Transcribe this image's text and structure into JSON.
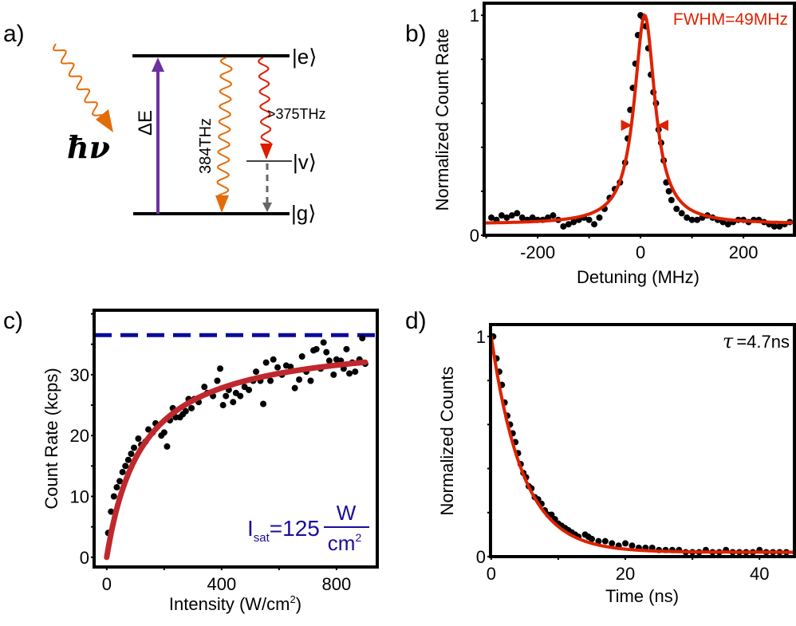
{
  "panel_labels": {
    "a": "a)",
    "b": "b)",
    "c": "c)",
    "d": "d)"
  },
  "diagram": {
    "photon_label": "ħν",
    "excited_state": "|e⟩",
    "vibrational_state": "|v⟩",
    "ground_state": "|g⟩",
    "energy_gap": "ΔE",
    "zpl_emission": "384THz",
    "psb_emission": ">375THz",
    "colors": {
      "excitation": "#7030a0",
      "photon": "#e36c09",
      "psb": "#dd1c00",
      "relaxation": "#666666"
    }
  },
  "chart_data": [
    {
      "id": "b",
      "type": "scatter",
      "xlabel": "Detuning (MHz)",
      "ylabel": "Normalized Count Rate",
      "xlim": [
        -304,
        299
      ],
      "ylim": [
        0,
        1.055
      ],
      "xticks": [
        -200,
        0,
        200
      ],
      "xtick_labels": [
        "-200",
        "0",
        "200"
      ],
      "yticks": [
        0,
        1
      ],
      "ytick_labels": [
        "0",
        "1"
      ],
      "annotation": "FWHM=49MHz",
      "fit": {
        "model": "lorentzian",
        "center": 8,
        "fwhm": 49,
        "offset": 0.05,
        "amplitude": 0.95
      },
      "fwhm_markers_y": 0.5,
      "colors": {
        "points": "#000000",
        "fit": "#dd2200"
      },
      "points": [
        [
          -290,
          0.08
        ],
        [
          -280,
          0.07
        ],
        [
          -270,
          0.09
        ],
        [
          -260,
          0.08
        ],
        [
          -250,
          0.09
        ],
        [
          -240,
          0.1
        ],
        [
          -230,
          0.08
        ],
        [
          -220,
          0.07
        ],
        [
          -210,
          0.08
        ],
        [
          -200,
          0.07
        ],
        [
          -190,
          0.07
        ],
        [
          -180,
          0.08
        ],
        [
          -170,
          0.09
        ],
        [
          -160,
          0.07
        ],
        [
          -150,
          0.04
        ],
        [
          -140,
          0.05
        ],
        [
          -130,
          0.06
        ],
        [
          -120,
          0.07
        ],
        [
          -110,
          0.08
        ],
        [
          -100,
          0.07
        ],
        [
          -90,
          0.05
        ],
        [
          -80,
          0.08
        ],
        [
          -70,
          0.12
        ],
        [
          -60,
          0.17
        ],
        [
          -50,
          0.21
        ],
        [
          -40,
          0.24
        ],
        [
          -30,
          0.33
        ],
        [
          -25,
          0.44
        ],
        [
          -20,
          0.57
        ],
        [
          -15,
          0.67
        ],
        [
          -10,
          0.78
        ],
        [
          -5,
          0.91
        ],
        [
          0,
          1.0
        ],
        [
          5,
          0.99
        ],
        [
          10,
          0.95
        ],
        [
          15,
          0.85
        ],
        [
          20,
          0.73
        ],
        [
          25,
          0.65
        ],
        [
          30,
          0.6
        ],
        [
          35,
          0.48
        ],
        [
          40,
          0.42
        ],
        [
          45,
          0.34
        ],
        [
          50,
          0.24
        ],
        [
          55,
          0.2
        ],
        [
          60,
          0.16
        ],
        [
          70,
          0.12
        ],
        [
          80,
          0.1
        ],
        [
          90,
          0.08
        ],
        [
          100,
          0.07
        ],
        [
          110,
          0.07
        ],
        [
          120,
          0.08
        ],
        [
          130,
          0.09
        ],
        [
          140,
          0.08
        ],
        [
          150,
          0.07
        ],
        [
          160,
          0.06
        ],
        [
          170,
          0.05
        ],
        [
          180,
          0.06
        ],
        [
          190,
          0.07
        ],
        [
          200,
          0.07
        ],
        [
          210,
          0.06
        ],
        [
          220,
          0.07
        ],
        [
          230,
          0.07
        ],
        [
          240,
          0.06
        ],
        [
          250,
          0.05
        ],
        [
          260,
          0.04
        ],
        [
          270,
          0.04
        ],
        [
          280,
          0.05
        ],
        [
          290,
          0.06
        ]
      ]
    },
    {
      "id": "c",
      "type": "scatter",
      "xlabel": "Intensity (W/cm",
      "xlabel_sup": "2",
      "xlabel_end": ")",
      "ylabel": "Count Rate (kcps)",
      "xlim": [
        -44,
        942
      ],
      "ylim": [
        -1.6,
        40.6
      ],
      "xticks": [
        0,
        400,
        800
      ],
      "xtick_labels": [
        "0",
        "400",
        "800"
      ],
      "yticks": [
        0,
        10,
        20,
        30
      ],
      "ytick_labels": [
        "0",
        "10",
        "20",
        "30"
      ],
      "saturation_level": 36.5,
      "annotation": {
        "symbol": "I",
        "subscript": "sat",
        "value": "=125",
        "numerator": "W",
        "denominator": "cm",
        "denominator_sup": "2"
      },
      "fit": {
        "model": "saturation",
        "Rmax": 36.5,
        "Isat": 125,
        "range": [
          0,
          900
        ]
      },
      "colors": {
        "points": "#000000",
        "fit": "#c0282d",
        "saturation": "#0a0a9c",
        "annotation": "#1a0d9c"
      },
      "points": [
        [
          5,
          4
        ],
        [
          15,
          7.5
        ],
        [
          25,
          10
        ],
        [
          35,
          11.5
        ],
        [
          45,
          12.5
        ],
        [
          55,
          14
        ],
        [
          65,
          15
        ],
        [
          75,
          16
        ],
        [
          85,
          17
        ],
        [
          95,
          18
        ],
        [
          110,
          19.5
        ],
        [
          120,
          18.5
        ],
        [
          135,
          19
        ],
        [
          145,
          21
        ],
        [
          160,
          20.5
        ],
        [
          170,
          22
        ],
        [
          190,
          20
        ],
        [
          200,
          20.5
        ],
        [
          210,
          18.2
        ],
        [
          220,
          22.5
        ],
        [
          230,
          24.5
        ],
        [
          240,
          23
        ],
        [
          255,
          23
        ],
        [
          265,
          23.5
        ],
        [
          275,
          24
        ],
        [
          285,
          26
        ],
        [
          295,
          24.5
        ],
        [
          305,
          26
        ],
        [
          320,
          25.5
        ],
        [
          340,
          28
        ],
        [
          350,
          27
        ],
        [
          370,
          26.5
        ],
        [
          385,
          29
        ],
        [
          395,
          31
        ],
        [
          405,
          25
        ],
        [
          415,
          26.5
        ],
        [
          425,
          27.5
        ],
        [
          440,
          25.5
        ],
        [
          450,
          27
        ],
        [
          465,
          26.5
        ],
        [
          480,
          28
        ],
        [
          495,
          27.5
        ],
        [
          510,
          29
        ],
        [
          520,
          30.5
        ],
        [
          535,
          29
        ],
        [
          545,
          25.2
        ],
        [
          555,
          32
        ],
        [
          570,
          29
        ],
        [
          580,
          32.5
        ],
        [
          595,
          31.2
        ],
        [
          610,
          30
        ],
        [
          625,
          31.5
        ],
        [
          640,
          31.3
        ],
        [
          655,
          27.8
        ],
        [
          670,
          29.2
        ],
        [
          680,
          33
        ],
        [
          695,
          30.5
        ],
        [
          710,
          29
        ],
        [
          720,
          34
        ],
        [
          730,
          34.2
        ],
        [
          745,
          31
        ],
        [
          755,
          35.3
        ],
        [
          765,
          33.7
        ],
        [
          775,
          32.3
        ],
        [
          790,
          30
        ],
        [
          800,
          32.5
        ],
        [
          815,
          32.3
        ],
        [
          825,
          31
        ],
        [
          835,
          34.2
        ],
        [
          845,
          30.2
        ],
        [
          855,
          32
        ],
        [
          865,
          30.5
        ],
        [
          880,
          32.5
        ],
        [
          890,
          36
        ],
        [
          900,
          31.8
        ]
      ]
    },
    {
      "id": "d",
      "type": "scatter",
      "xlabel": "Time (ns)",
      "ylabel": "Normalized Counts",
      "xlim": [
        -0.1,
        45.2
      ],
      "ylim": [
        0,
        1.054
      ],
      "xticks": [
        0,
        20,
        40
      ],
      "xtick_labels": [
        "0",
        "20",
        "40"
      ],
      "yticks": [
        0,
        1
      ],
      "ytick_labels": [
        "0",
        "1"
      ],
      "annotation": {
        "symbol": "τ",
        "value": "=4.7ns"
      },
      "fit": {
        "model": "exponential",
        "tau": 4.7,
        "amplitude": 0.98,
        "offset": 0.02
      },
      "colors": {
        "points": "#000000",
        "fit": "#dd2200"
      },
      "points": [
        [
          0.3,
          1.0
        ],
        [
          0.8,
          0.9
        ],
        [
          1.2,
          0.84
        ],
        [
          1.6,
          0.78
        ],
        [
          2.0,
          0.7
        ],
        [
          2.4,
          0.64
        ],
        [
          2.8,
          0.6
        ],
        [
          3.2,
          0.56
        ],
        [
          3.6,
          0.52
        ],
        [
          4.0,
          0.47
        ],
        [
          4.4,
          0.42
        ],
        [
          4.8,
          0.38
        ],
        [
          5.2,
          0.36
        ],
        [
          5.6,
          0.32
        ],
        [
          6.0,
          0.31
        ],
        [
          6.5,
          0.27
        ],
        [
          7.0,
          0.26
        ],
        [
          7.5,
          0.24
        ],
        [
          8.0,
          0.21
        ],
        [
          8.5,
          0.19
        ],
        [
          9.0,
          0.19
        ],
        [
          9.5,
          0.17
        ],
        [
          10,
          0.15
        ],
        [
          10.5,
          0.14
        ],
        [
          11,
          0.13
        ],
        [
          11.5,
          0.12
        ],
        [
          12,
          0.11
        ],
        [
          12.5,
          0.1
        ],
        [
          13,
          0.09
        ],
        [
          14,
          0.1
        ],
        [
          14.5,
          0.09
        ],
        [
          15,
          0.08
        ],
        [
          16,
          0.07
        ],
        [
          17,
          0.07
        ],
        [
          18,
          0.06
        ],
        [
          19,
          0.05
        ],
        [
          20,
          0.06
        ],
        [
          21,
          0.05
        ],
        [
          22,
          0.04
        ],
        [
          23,
          0.04
        ],
        [
          24,
          0.04
        ],
        [
          25,
          0.03
        ],
        [
          26,
          0.03
        ],
        [
          27,
          0.03
        ],
        [
          28,
          0.03
        ],
        [
          29,
          0.02
        ],
        [
          30,
          0.02
        ],
        [
          31,
          0.02
        ],
        [
          32,
          0.03
        ],
        [
          33,
          0.02
        ],
        [
          34,
          0.02
        ],
        [
          35,
          0.03
        ],
        [
          36,
          0.02
        ],
        [
          37,
          0.02
        ],
        [
          38,
          0.02
        ],
        [
          39,
          0.02
        ],
        [
          40,
          0.03
        ],
        [
          41,
          0.02
        ],
        [
          42,
          0.02
        ],
        [
          43,
          0.02
        ],
        [
          44,
          0.02
        ]
      ]
    }
  ]
}
